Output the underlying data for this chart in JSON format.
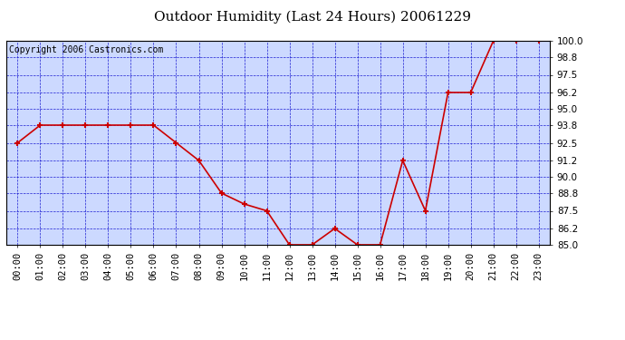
{
  "title": "Outdoor Humidity (Last 24 Hours) 20061229",
  "copyright_text": "Copyright 2006 Castronics.com",
  "x_labels": [
    "00:00",
    "01:00",
    "02:00",
    "03:00",
    "04:00",
    "05:00",
    "06:00",
    "07:00",
    "08:00",
    "09:00",
    "10:00",
    "11:00",
    "12:00",
    "13:00",
    "14:00",
    "15:00",
    "16:00",
    "17:00",
    "18:00",
    "19:00",
    "20:00",
    "21:00",
    "22:00",
    "23:00"
  ],
  "y_values": [
    92.5,
    93.8,
    93.8,
    93.8,
    93.8,
    93.8,
    93.8,
    92.5,
    91.2,
    88.8,
    88.0,
    87.5,
    85.0,
    85.0,
    86.2,
    85.0,
    85.0,
    91.2,
    87.5,
    96.2,
    96.2,
    100.0,
    100.0,
    100.0
  ],
  "ylim_min": 85.0,
  "ylim_max": 100.0,
  "y_ticks": [
    85.0,
    86.2,
    87.5,
    88.8,
    90.0,
    91.2,
    92.5,
    93.8,
    95.0,
    96.2,
    97.5,
    98.8,
    100.0
  ],
  "line_color": "#cc0000",
  "marker_color": "#cc0000",
  "outer_bg_color": "#ffffff",
  "plot_bg_color": "#ccd9ff",
  "grid_color": "#0000cc",
  "border_color": "#000000",
  "title_color": "#000000",
  "label_color": "#000000",
  "title_fontsize": 11,
  "tick_fontsize": 7.5,
  "copyright_fontsize": 7
}
